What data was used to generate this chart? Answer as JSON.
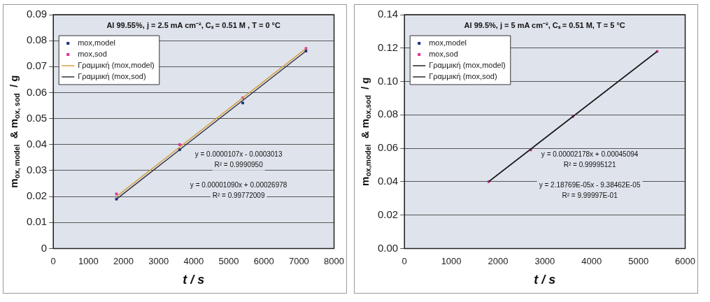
{
  "chart_data": [
    {
      "type": "scatter",
      "title": "Al 99.55%, j = 2.5 mA cm⁻², Cₛ = 0.51 M , T = 0 °C",
      "xlabel": "t / s",
      "ylabel": "m$_{ox, model}$ & m$_{ox, sod}$ / g",
      "xlim": [
        0,
        8000
      ],
      "xticks": [
        0,
        1000,
        2000,
        3000,
        4000,
        5000,
        6000,
        7000,
        8000
      ],
      "ylim": [
        0,
        0.09
      ],
      "yticks": [
        0,
        0.01,
        0.02,
        0.03,
        0.04,
        0.05,
        0.06,
        0.07,
        0.08,
        0.09
      ],
      "grid": "y",
      "legend": "top left",
      "series": [
        {
          "name": "mox,model",
          "color": "#1f2f80",
          "marker": "square",
          "x": [
            1800,
            3600,
            5400,
            7200
          ],
          "values": [
            0.019,
            0.038,
            0.056,
            0.076
          ]
        },
        {
          "name": "mox,sod",
          "color": "#e0309a",
          "marker": "square",
          "x": [
            1800,
            3600,
            5400,
            7200
          ],
          "values": [
            0.021,
            0.04,
            0.058,
            0.077
          ]
        },
        {
          "name": "Γραμμική (mox,model)",
          "type": "line",
          "color": "#d4a040",
          "marker": "none",
          "x": [
            1800,
            7200
          ],
          "values": [
            0.02,
            0.077
          ]
        },
        {
          "name": "Γραμμική (mox,sod)",
          "type": "line",
          "color": "#303040",
          "marker": "none",
          "x": [
            1800,
            7200
          ],
          "values": [
            0.019,
            0.076
          ]
        }
      ],
      "annotations": [
        "y = 0.0000107x - 0.0003013",
        "R² = 0.9990950",
        "y = 0.00001090x + 0.00026978",
        "R² = 0.99772009"
      ]
    },
    {
      "type": "scatter",
      "title": "Al 99.5%, j = 5 mA cm⁻², Cₛ = 0.51 M, T = 5 °C",
      "xlabel": "t / s",
      "ylabel": "m$_{ox,model}$ & m$_{ox,sod}$ / g",
      "xlim": [
        0,
        6000
      ],
      "xticks": [
        0,
        1000,
        2000,
        3000,
        4000,
        5000,
        6000
      ],
      "ylim": [
        0,
        0.14
      ],
      "yticks": [
        {
          "value": 0,
          "label": "0.00"
        },
        {
          "value": 0.02,
          "label": "0.02"
        },
        {
          "value": 0.04,
          "label": "0.04"
        },
        {
          "value": 0.06,
          "label": "0.06"
        },
        {
          "value": 0.08,
          "label": "0.08"
        },
        {
          "value": 0.1,
          "label": "0.10"
        },
        {
          "value": 0.12,
          "label": "0.12"
        },
        {
          "value": 0.14,
          "label": "0.14"
        }
      ],
      "grid": "y",
      "legend": "top left",
      "series": [
        {
          "name": "mox,model",
          "color": "#1f2f80",
          "marker": "square"
        },
        {
          "name": "mox,sod",
          "color": "#e0309a",
          "marker": "square",
          "x": [
            1800,
            2700,
            3600,
            5400
          ],
          "values": [
            0.04,
            0.059,
            0.079,
            0.118
          ]
        },
        {
          "name": "Γραμμική (mox,model)",
          "type": "line",
          "color": "#202020",
          "marker": "none",
          "x": [
            1800,
            5400
          ],
          "values": [
            0.04,
            0.118
          ]
        },
        {
          "name": "Γραμμική (mox,sod)",
          "type": "line",
          "color": "#203020",
          "marker": "none",
          "x": [
            1800,
            5400
          ],
          "values": [
            0.04,
            0.118
          ]
        }
      ],
      "annotations": [
        "y = 0.00002178x + 0.00045094",
        "R² = 0.99995121",
        "y = 2.18769E-05x - 9.38462E-05",
        "R² = 9.99997E-01"
      ]
    }
  ]
}
